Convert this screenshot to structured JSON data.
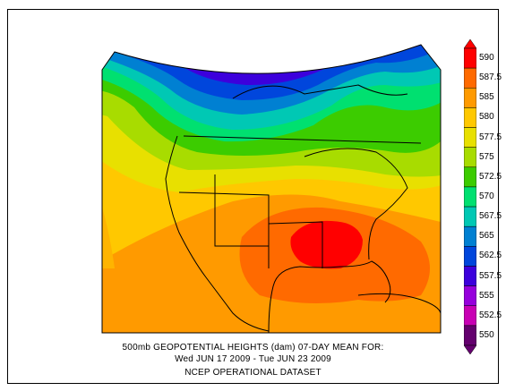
{
  "caption": {
    "line1": "500mb GEOPOTENTIAL HEIGHTS (dam)    07-DAY MEAN FOR:",
    "line2": "Wed JUN 17 2009 - Tue JUN 23 2009",
    "line3": "NCEP OPERATIONAL DATASET"
  },
  "colorbar": {
    "levels": [
      {
        "label": "590",
        "color": "#ff0000"
      },
      {
        "label": "587.5",
        "color": "#ff6a00"
      },
      {
        "label": "585",
        "color": "#ff9a00"
      },
      {
        "label": "580",
        "color": "#ffc800"
      },
      {
        "label": "577.5",
        "color": "#e8e000"
      },
      {
        "label": "575",
        "color": "#a8dc00"
      },
      {
        "label": "572.5",
        "color": "#3ccc00"
      },
      {
        "label": "570",
        "color": "#00e070"
      },
      {
        "label": "567.5",
        "color": "#00c8b4"
      },
      {
        "label": "565",
        "color": "#0080d2"
      },
      {
        "label": "562.5",
        "color": "#0046dc"
      },
      {
        "label": "557.5",
        "color": "#3c00dc"
      },
      {
        "label": "555",
        "color": "#9600dc"
      },
      {
        "label": "552.5",
        "color": "#c800b4"
      },
      {
        "label": "550",
        "color": "#64006e"
      }
    ]
  }
}
